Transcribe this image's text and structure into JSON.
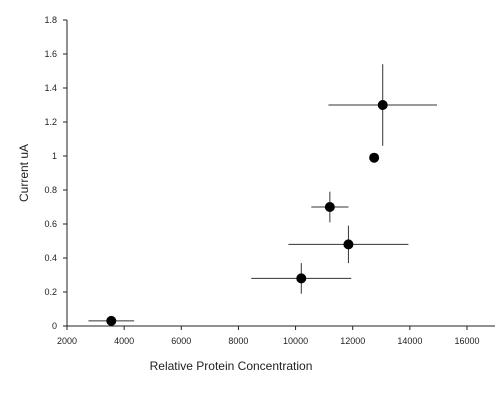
{
  "chart_data": {
    "type": "scatter",
    "title": "",
    "xlabel": "Relative Protein Concentration",
    "ylabel": "Current  uA",
    "xlim": [
      2000,
      16000
    ],
    "ylim": [
      0,
      1.8
    ],
    "xticks": [
      "2000",
      "4000",
      "6000",
      "8000",
      "10000",
      "12000",
      "14000",
      "16000"
    ],
    "yticks": [
      "0",
      "0.2",
      "0.4",
      "0.6",
      "0.8",
      "1",
      "1.2",
      "1.4",
      "1.6",
      "1.8"
    ],
    "grid": false,
    "legend": "none",
    "marker_color": "#000000",
    "points": [
      {
        "x": 3550,
        "y": 0.03,
        "xerr": 800,
        "yerr": 0
      },
      {
        "x": 10200,
        "y": 0.28,
        "xerr": 1750,
        "yerr": 0.09
      },
      {
        "x": 11850,
        "y": 0.48,
        "xerr": 2100,
        "yerr": 0.11
      },
      {
        "x": 11200,
        "y": 0.7,
        "xerr": 650,
        "yerr": 0.09
      },
      {
        "x": 12750,
        "y": 0.99,
        "xerr": 0,
        "yerr": 0
      },
      {
        "x": 13050,
        "y": 1.3,
        "xerr": 1900,
        "yerr": 0.24
      }
    ]
  }
}
